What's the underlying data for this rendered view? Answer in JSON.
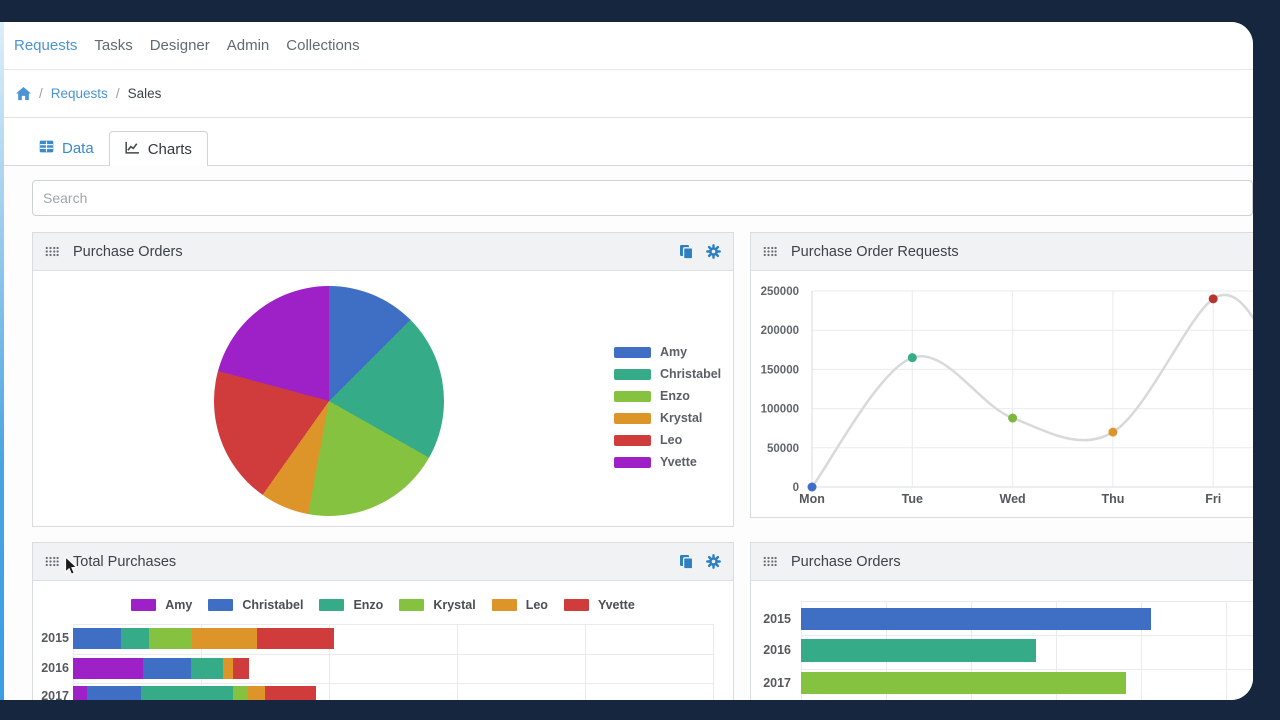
{
  "frame": {
    "background": "#17263f"
  },
  "topnav": {
    "items": [
      {
        "label": "Requests",
        "active": true
      },
      {
        "label": "Tasks",
        "active": false
      },
      {
        "label": "Designer",
        "active": false
      },
      {
        "label": "Admin",
        "active": false
      },
      {
        "label": "Collections",
        "active": false
      }
    ]
  },
  "breadcrumb": {
    "separator": "/",
    "items": [
      {
        "label": "Requests",
        "link": true
      },
      {
        "label": "Sales",
        "link": false
      }
    ]
  },
  "tabs": [
    {
      "label": "Data",
      "icon": "table-icon",
      "active": false
    },
    {
      "label": "Charts",
      "icon": "line-chart-icon",
      "active": true
    }
  ],
  "search": {
    "placeholder": "Search",
    "value": ""
  },
  "cards": [
    {
      "title": "Purchase Orders"
    },
    {
      "title": "Purchase Order Requests"
    },
    {
      "title": "Total Purchases"
    },
    {
      "title": "Purchase Orders"
    }
  ],
  "palette": {
    "accent_blue": "#4a93d5",
    "icon_blue": "#2e7fc0",
    "card_header_bg": "#f1f2f4",
    "grid_line": "#e9ebed",
    "navy_background": "#17263f"
  },
  "chart_data": [
    {
      "id": "purchase-orders-pie",
      "type": "pie",
      "title": "Purchase Orders",
      "labels": [
        "Amy",
        "Christabel",
        "Enzo",
        "Krystal",
        "Leo",
        "Yvette"
      ],
      "values": [
        12.5,
        20.7,
        19.7,
        6.9,
        19.4,
        20.8
      ],
      "colors": [
        "#3e6fc4",
        "#35ab87",
        "#85c240",
        "#dd9428",
        "#d03b3b",
        "#9d21c6"
      ],
      "legend_position": "right",
      "units": "percent (estimated from slice angles)"
    },
    {
      "id": "purchase-order-requests-line",
      "type": "line",
      "title": "Purchase Order Requests",
      "x": [
        "Mon",
        "Tue",
        "Wed",
        "Thu",
        "Fri"
      ],
      "values": [
        0,
        165000,
        88000,
        70000,
        240000
      ],
      "point_colors": [
        "#3e6fc4",
        "#35ab87",
        "#7db83e",
        "#dd9428",
        "#b5362f"
      ],
      "line_color": "#d9d9d9",
      "ylim": [
        0,
        250000
      ],
      "yticks": [
        0,
        50000,
        100000,
        150000,
        200000,
        250000
      ],
      "grid": true,
      "curve": "smooth"
    },
    {
      "id": "total-purchases-stacked",
      "type": "bar",
      "orientation": "horizontal-stacked",
      "title": "Total Purchases",
      "categories": [
        "2015",
        "2016",
        "2017"
      ],
      "series": [
        {
          "name": "Amy",
          "color": "#9d21c6",
          "values": [
            0,
            70,
            14
          ]
        },
        {
          "name": "Christabel",
          "color": "#3e6fc4",
          "values": [
            48,
            48,
            54
          ]
        },
        {
          "name": "Enzo",
          "color": "#35ab87",
          "values": [
            28,
            32,
            92
          ]
        },
        {
          "name": "Krystal",
          "color": "#85c240",
          "values": [
            43,
            0,
            15
          ]
        },
        {
          "name": "Leo",
          "color": "#dd9428",
          "values": [
            65,
            10,
            17
          ]
        },
        {
          "name": "Yvette",
          "color": "#d03b3b",
          "values": [
            77,
            16,
            51
          ]
        }
      ],
      "legend_position": "top",
      "units": "relative (numeric axis labels not visible in screenshot)"
    },
    {
      "id": "purchase-orders-bars",
      "type": "bar",
      "orientation": "horizontal",
      "title": "Purchase Orders",
      "categories": [
        "2015",
        "2016",
        "2017"
      ],
      "values": [
        350,
        235,
        325
      ],
      "colors": [
        "#3e6fc4",
        "#35ab87",
        "#85c240"
      ],
      "units": "relative (numeric axis labels not visible in screenshot)"
    }
  ]
}
